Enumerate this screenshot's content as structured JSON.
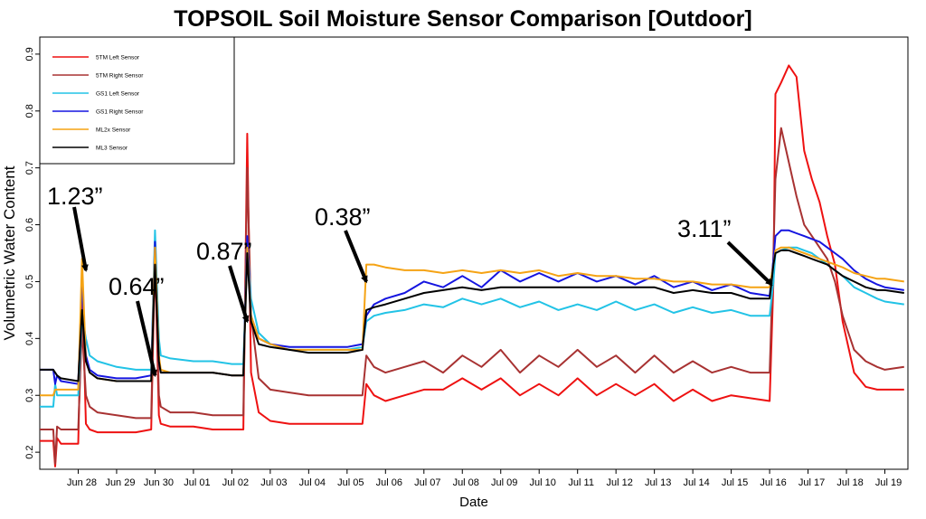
{
  "chart_data": {
    "type": "line",
    "title": "TOPSOIL Soil Moisture Sensor Comparison [Outdoor]",
    "xlabel": "Date",
    "ylabel": "Volumetric Water Content",
    "xlim": [
      27.0,
      49.6
    ],
    "ylim": [
      0.17,
      0.93
    ],
    "grid": false,
    "legend_position": "top-left",
    "categories": [
      "Jun 28",
      "Jun 29",
      "Jun 30",
      "Jul 01",
      "Jul 02",
      "Jul 03",
      "Jul 04",
      "Jul 05",
      "Jul 06",
      "Jul 07",
      "Jul 08",
      "Jul 09",
      "Jul 10",
      "Jul 11",
      "Jul 12",
      "Jul 13",
      "Jul 14",
      "Jul 15",
      "Jul 16",
      "Jul 17",
      "Jul 18",
      "Jul 19"
    ],
    "x_positions": [
      28,
      29,
      30,
      31,
      32,
      33,
      34,
      35,
      36,
      37,
      38,
      39,
      40,
      41,
      42,
      43,
      44,
      45,
      46,
      47,
      48,
      49
    ],
    "y_ticks": [
      0.2,
      0.3,
      0.4,
      0.5,
      0.6,
      0.7,
      0.8,
      0.9
    ],
    "y_tick_labels": [
      "0.2",
      "0.3",
      "0.4",
      "0.5",
      "0.6",
      "0.7",
      "0.8",
      "0.9"
    ],
    "series": [
      {
        "name": "5TM Left Sensor",
        "color": "#ee1111",
        "x": [
          27.0,
          27.35,
          27.4,
          27.45,
          27.55,
          28.0,
          28.1,
          28.2,
          28.3,
          28.5,
          29.0,
          29.5,
          29.9,
          30.0,
          30.1,
          30.15,
          30.4,
          31.0,
          31.5,
          32.0,
          32.3,
          32.4,
          32.5,
          32.7,
          33.0,
          33.5,
          34.0,
          34.5,
          35.0,
          35.4,
          35.5,
          35.7,
          36.0,
          36.5,
          37.0,
          37.5,
          38.0,
          38.5,
          39.0,
          39.5,
          40.0,
          40.5,
          41.0,
          41.5,
          42.0,
          42.5,
          43.0,
          43.5,
          44.0,
          44.5,
          45.0,
          45.5,
          46.0,
          46.1,
          46.15,
          46.3,
          46.5,
          46.7,
          46.9,
          47.1,
          47.3,
          47.5,
          47.7,
          47.9,
          48.2,
          48.5,
          48.8,
          49.0,
          49.5
        ],
        "y": [
          0.22,
          0.22,
          0.175,
          0.225,
          0.215,
          0.215,
          0.5,
          0.25,
          0.24,
          0.235,
          0.235,
          0.235,
          0.24,
          0.55,
          0.265,
          0.25,
          0.245,
          0.245,
          0.24,
          0.24,
          0.24,
          0.76,
          0.34,
          0.27,
          0.255,
          0.25,
          0.25,
          0.25,
          0.25,
          0.25,
          0.32,
          0.3,
          0.29,
          0.3,
          0.31,
          0.31,
          0.33,
          0.31,
          0.33,
          0.3,
          0.32,
          0.3,
          0.33,
          0.3,
          0.32,
          0.3,
          0.32,
          0.29,
          0.31,
          0.29,
          0.3,
          0.295,
          0.29,
          0.5,
          0.83,
          0.85,
          0.88,
          0.86,
          0.73,
          0.68,
          0.64,
          0.58,
          0.53,
          0.43,
          0.34,
          0.315,
          0.31,
          0.31,
          0.31
        ]
      },
      {
        "name": "5TM Right Sensor",
        "color": "#a83232",
        "x": [
          27.0,
          27.35,
          27.4,
          27.45,
          27.55,
          28.0,
          28.1,
          28.2,
          28.3,
          28.5,
          29.0,
          29.5,
          29.9,
          30.0,
          30.1,
          30.15,
          30.4,
          31.0,
          31.5,
          32.0,
          32.3,
          32.4,
          32.5,
          32.7,
          33.0,
          33.5,
          34.0,
          34.5,
          35.0,
          35.4,
          35.5,
          35.7,
          36.0,
          36.5,
          37.0,
          37.5,
          38.0,
          38.5,
          39.0,
          39.5,
          40.0,
          40.5,
          41.0,
          41.5,
          42.0,
          42.5,
          43.0,
          43.5,
          44.0,
          44.5,
          45.0,
          45.5,
          46.0,
          46.1,
          46.15,
          46.3,
          46.5,
          46.7,
          46.9,
          47.1,
          47.3,
          47.5,
          47.7,
          47.9,
          48.2,
          48.5,
          48.8,
          49.0,
          49.5
        ],
        "y": [
          0.24,
          0.24,
          0.18,
          0.245,
          0.24,
          0.24,
          0.42,
          0.3,
          0.28,
          0.27,
          0.265,
          0.26,
          0.26,
          0.57,
          0.3,
          0.28,
          0.27,
          0.27,
          0.265,
          0.265,
          0.265,
          0.7,
          0.44,
          0.33,
          0.31,
          0.305,
          0.3,
          0.3,
          0.3,
          0.3,
          0.37,
          0.35,
          0.34,
          0.35,
          0.36,
          0.34,
          0.37,
          0.35,
          0.38,
          0.34,
          0.37,
          0.35,
          0.38,
          0.35,
          0.37,
          0.34,
          0.37,
          0.34,
          0.36,
          0.34,
          0.35,
          0.34,
          0.34,
          0.55,
          0.68,
          0.77,
          0.71,
          0.65,
          0.6,
          0.58,
          0.56,
          0.54,
          0.5,
          0.44,
          0.38,
          0.36,
          0.35,
          0.345,
          0.35
        ]
      },
      {
        "name": "GS1 Left Sensor",
        "color": "#22c3e6",
        "x": [
          27.0,
          27.35,
          27.4,
          27.45,
          27.55,
          28.0,
          28.1,
          28.2,
          28.3,
          28.5,
          29.0,
          29.5,
          29.9,
          30.0,
          30.1,
          30.15,
          30.4,
          31.0,
          31.5,
          32.0,
          32.3,
          32.4,
          32.5,
          32.7,
          33.0,
          33.5,
          34.0,
          34.5,
          35.0,
          35.4,
          35.5,
          35.7,
          36.0,
          36.5,
          37.0,
          37.5,
          38.0,
          38.5,
          39.0,
          39.5,
          40.0,
          40.5,
          41.0,
          41.5,
          42.0,
          42.5,
          43.0,
          43.5,
          44.0,
          44.5,
          45.0,
          45.5,
          46.0,
          46.1,
          46.15,
          46.3,
          46.5,
          46.7,
          46.9,
          47.1,
          47.3,
          47.5,
          47.7,
          47.9,
          48.2,
          48.5,
          48.8,
          49.0,
          49.5
        ],
        "y": [
          0.28,
          0.28,
          0.32,
          0.3,
          0.3,
          0.3,
          0.44,
          0.4,
          0.37,
          0.36,
          0.35,
          0.345,
          0.345,
          0.59,
          0.4,
          0.37,
          0.365,
          0.36,
          0.36,
          0.355,
          0.355,
          0.57,
          0.47,
          0.41,
          0.39,
          0.38,
          0.38,
          0.38,
          0.38,
          0.385,
          0.43,
          0.44,
          0.445,
          0.45,
          0.46,
          0.455,
          0.47,
          0.46,
          0.47,
          0.455,
          0.465,
          0.45,
          0.46,
          0.45,
          0.465,
          0.45,
          0.46,
          0.445,
          0.455,
          0.445,
          0.45,
          0.44,
          0.44,
          0.5,
          0.55,
          0.555,
          0.56,
          0.56,
          0.555,
          0.55,
          0.54,
          0.53,
          0.52,
          0.51,
          0.49,
          0.48,
          0.47,
          0.465,
          0.46
        ]
      },
      {
        "name": "GS1 Right Sensor",
        "color": "#1515e0",
        "x": [
          27.0,
          27.35,
          27.4,
          27.45,
          27.55,
          28.0,
          28.1,
          28.2,
          28.3,
          28.5,
          29.0,
          29.5,
          29.9,
          30.0,
          30.1,
          30.15,
          30.4,
          31.0,
          31.5,
          32.0,
          32.3,
          32.4,
          32.5,
          32.7,
          33.0,
          33.5,
          34.0,
          34.5,
          35.0,
          35.4,
          35.5,
          35.7,
          36.0,
          36.5,
          37.0,
          37.5,
          38.0,
          38.5,
          39.0,
          39.5,
          40.0,
          40.5,
          41.0,
          41.5,
          42.0,
          42.5,
          43.0,
          43.5,
          44.0,
          44.5,
          45.0,
          45.5,
          46.0,
          46.1,
          46.15,
          46.3,
          46.5,
          46.7,
          46.9,
          47.1,
          47.3,
          47.5,
          47.7,
          47.9,
          48.2,
          48.5,
          48.8,
          49.0,
          49.5
        ],
        "y": [
          0.345,
          0.345,
          0.32,
          0.335,
          0.325,
          0.32,
          0.5,
          0.37,
          0.345,
          0.335,
          0.33,
          0.33,
          0.335,
          0.57,
          0.36,
          0.34,
          0.34,
          0.34,
          0.34,
          0.335,
          0.335,
          0.58,
          0.44,
          0.4,
          0.39,
          0.385,
          0.385,
          0.385,
          0.385,
          0.39,
          0.44,
          0.46,
          0.47,
          0.48,
          0.5,
          0.49,
          0.51,
          0.49,
          0.52,
          0.5,
          0.515,
          0.5,
          0.515,
          0.5,
          0.51,
          0.495,
          0.51,
          0.49,
          0.5,
          0.485,
          0.495,
          0.48,
          0.475,
          0.54,
          0.58,
          0.59,
          0.59,
          0.585,
          0.58,
          0.575,
          0.57,
          0.56,
          0.55,
          0.54,
          0.52,
          0.505,
          0.495,
          0.49,
          0.485
        ]
      },
      {
        "name": "ML2x Sensor",
        "color": "#f5a314",
        "x": [
          27.0,
          27.35,
          27.4,
          27.45,
          27.55,
          28.0,
          28.1,
          28.2,
          28.3,
          28.5,
          29.0,
          29.5,
          29.9,
          30.0,
          30.1,
          30.15,
          30.4,
          31.0,
          31.5,
          32.0,
          32.3,
          32.4,
          32.5,
          32.7,
          33.0,
          33.5,
          34.0,
          34.5,
          35.0,
          35.4,
          35.5,
          35.7,
          36.0,
          36.5,
          37.0,
          37.5,
          38.0,
          38.5,
          39.0,
          39.5,
          40.0,
          40.5,
          41.0,
          41.5,
          42.0,
          42.5,
          43.0,
          43.5,
          44.0,
          44.5,
          45.0,
          45.5,
          46.0,
          46.1,
          46.15,
          46.3,
          46.5,
          46.7,
          46.9,
          47.1,
          47.3,
          47.5,
          47.7,
          47.9,
          48.2,
          48.5,
          48.8,
          49.0,
          49.5
        ],
        "y": [
          0.3,
          0.3,
          0.31,
          0.31,
          0.31,
          0.31,
          0.54,
          0.36,
          0.34,
          0.33,
          0.325,
          0.325,
          0.325,
          0.56,
          0.37,
          0.345,
          0.34,
          0.34,
          0.34,
          0.335,
          0.335,
          0.56,
          0.44,
          0.4,
          0.39,
          0.38,
          0.38,
          0.38,
          0.38,
          0.38,
          0.53,
          0.53,
          0.525,
          0.52,
          0.52,
          0.515,
          0.52,
          0.515,
          0.52,
          0.515,
          0.52,
          0.51,
          0.515,
          0.51,
          0.51,
          0.505,
          0.505,
          0.5,
          0.5,
          0.495,
          0.495,
          0.49,
          0.49,
          0.53,
          0.555,
          0.56,
          0.56,
          0.555,
          0.55,
          0.545,
          0.54,
          0.535,
          0.53,
          0.525,
          0.515,
          0.51,
          0.505,
          0.505,
          0.5
        ]
      },
      {
        "name": "ML3 Sensor",
        "color": "#000000",
        "x": [
          27.0,
          27.35,
          27.4,
          27.45,
          27.55,
          28.0,
          28.1,
          28.2,
          28.3,
          28.5,
          29.0,
          29.5,
          29.9,
          30.0,
          30.1,
          30.15,
          30.4,
          31.0,
          31.5,
          32.0,
          32.3,
          32.4,
          32.5,
          32.7,
          33.0,
          33.5,
          34.0,
          34.5,
          35.0,
          35.4,
          35.5,
          35.7,
          36.0,
          36.5,
          37.0,
          37.5,
          38.0,
          38.5,
          39.0,
          39.5,
          40.0,
          40.5,
          41.0,
          41.5,
          42.0,
          42.5,
          43.0,
          43.5,
          44.0,
          44.5,
          45.0,
          45.5,
          46.0,
          46.1,
          46.15,
          46.3,
          46.5,
          46.7,
          46.9,
          47.1,
          47.3,
          47.5,
          47.7,
          47.9,
          48.2,
          48.5,
          48.8,
          49.0,
          49.5
        ],
        "y": [
          0.345,
          0.345,
          0.34,
          0.335,
          0.33,
          0.325,
          0.45,
          0.36,
          0.34,
          0.33,
          0.325,
          0.325,
          0.325,
          0.53,
          0.36,
          0.34,
          0.34,
          0.34,
          0.34,
          0.335,
          0.335,
          0.55,
          0.43,
          0.39,
          0.385,
          0.38,
          0.375,
          0.375,
          0.375,
          0.38,
          0.45,
          0.455,
          0.46,
          0.47,
          0.48,
          0.485,
          0.49,
          0.485,
          0.49,
          0.49,
          0.49,
          0.49,
          0.49,
          0.49,
          0.49,
          0.49,
          0.49,
          0.48,
          0.485,
          0.48,
          0.48,
          0.47,
          0.47,
          0.53,
          0.55,
          0.555,
          0.555,
          0.55,
          0.545,
          0.54,
          0.535,
          0.53,
          0.52,
          0.51,
          0.5,
          0.49,
          0.485,
          0.485,
          0.48
        ]
      }
    ],
    "annotations": [
      {
        "text": "1.23”",
        "target": [
          28.2,
          0.52
        ]
      },
      {
        "text": "0.64”",
        "target": [
          30.0,
          0.335
        ]
      },
      {
        "text": "0.87”",
        "target": [
          32.4,
          0.43
        ]
      },
      {
        "text": "0.38”",
        "target": [
          35.5,
          0.5
        ]
      },
      {
        "text": "3.11”",
        "target": [
          46.05,
          0.495
        ]
      }
    ]
  }
}
